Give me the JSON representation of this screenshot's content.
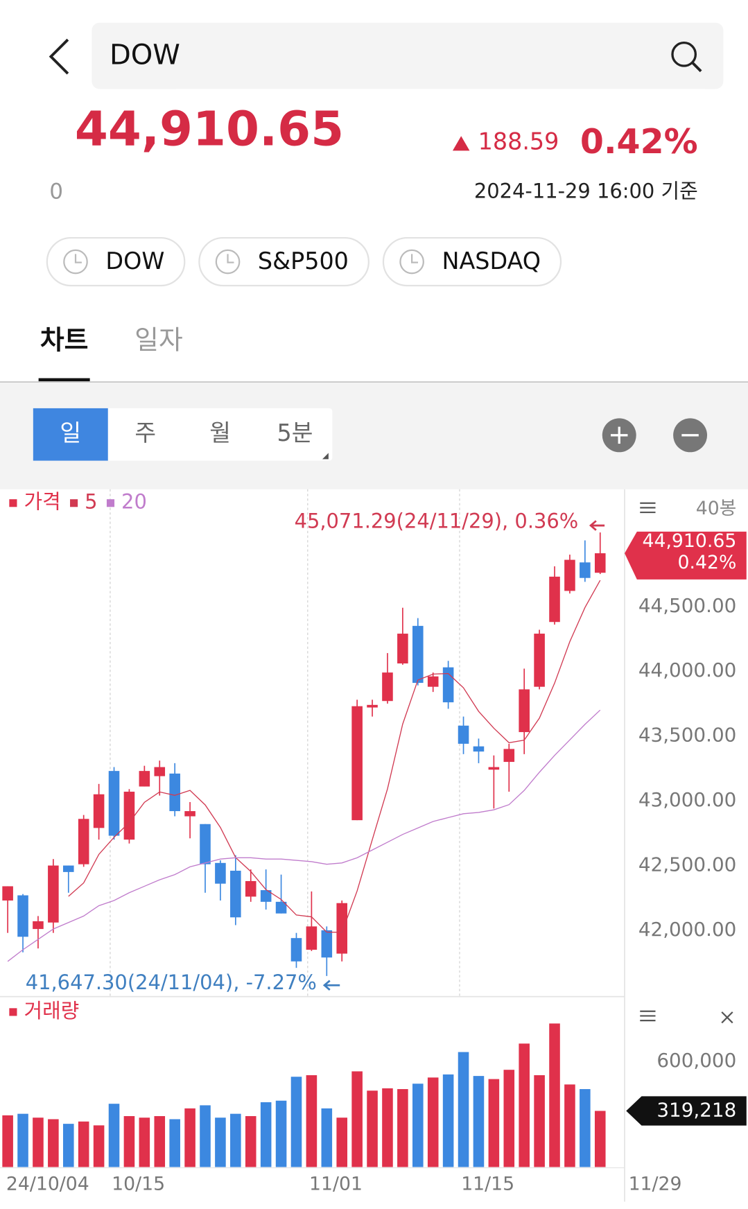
{
  "header": {
    "search": "DOW",
    "price": "44,910.65",
    "change": "188.59",
    "change_percent": "0.42%",
    "volume": "0",
    "timestamp": "2024-11-29 16:00 기준"
  },
  "index_chips": [
    "DOW",
    "S&P500",
    "NASDAQ"
  ],
  "tabs": [
    "차트",
    "일자"
  ],
  "active_tab": 0,
  "periods": [
    "일",
    "주",
    "월",
    "5분"
  ],
  "active_period": 0,
  "chart_data": [
    {
      "type": "candlestick",
      "up_color": "#e0314b",
      "down_color": "#3c88e0",
      "bar_count": "40봉",
      "ylim": [
        41494,
        45405
      ],
      "yticks": [
        {
          "value": 42000,
          "label": "42,000.00"
        },
        {
          "value": 42500,
          "label": "42,500.00"
        },
        {
          "value": 43000,
          "label": "43,000.00"
        },
        {
          "value": 43500,
          "label": "43,500.00"
        },
        {
          "value": 44000,
          "label": "44,000.00"
        },
        {
          "value": 44500,
          "label": "44,500.00"
        }
      ],
      "series": [
        {
          "name": "가격",
          "color": "#e0314b",
          "open": [
            42230,
            42270,
            42010,
            42060,
            42500,
            42510,
            42790,
            43230,
            42700,
            43110,
            43190,
            43210,
            42880,
            42820,
            42520,
            42460,
            42260,
            42310,
            42220,
            41940,
            41850,
            42000,
            41820,
            42850,
            43720,
            43770,
            44060,
            44350,
            43880,
            44030,
            43580,
            43420,
            43240,
            43300,
            43530,
            43880,
            44380,
            44620,
            44840,
            44760
          ],
          "high": [
            42340,
            42280,
            42110,
            42550,
            42500,
            42890,
            43130,
            43260,
            43090,
            43270,
            43310,
            43290,
            42990,
            42820,
            42540,
            42580,
            42470,
            42470,
            42430,
            41980,
            42300,
            42030,
            42230,
            43780,
            43780,
            44140,
            44490,
            44410,
            43990,
            44080,
            43650,
            43480,
            43350,
            43440,
            44020,
            44320,
            44810,
            44900,
            45010,
            45071.29
          ],
          "low": [
            41980,
            41830,
            41860,
            41980,
            42290,
            42490,
            42700,
            42700,
            42670,
            43110,
            43040,
            42880,
            42710,
            42290,
            42230,
            42040,
            42220,
            42160,
            42130,
            41710,
            41840,
            41647.3,
            41760,
            42850,
            43650,
            43750,
            44050,
            43890,
            43840,
            43710,
            43360,
            43290,
            42940,
            43070,
            43360,
            43860,
            44360,
            44600,
            44690,
            44750
          ],
          "close": [
            42340,
            41950,
            42070,
            42500,
            42450,
            42860,
            43050,
            42730,
            43070,
            43230,
            43260,
            42920,
            42920,
            42510,
            42360,
            42100,
            42380,
            42220,
            42130,
            41760,
            42030,
            41790,
            42210,
            43730,
            43740,
            43990,
            44290,
            43910,
            43960,
            43760,
            43440,
            43380,
            43260,
            43400,
            43860,
            44290,
            44730,
            44860,
            44720,
            44910.65
          ]
        },
        {
          "name": "5",
          "color": "#d13a52",
          "values": [
            null,
            null,
            null,
            null,
            42262,
            42366,
            42586,
            42718,
            42832,
            42988,
            43068,
            43042,
            43080,
            42968,
            42794,
            42562,
            42454,
            42314,
            42238,
            42118,
            42104,
            41986,
            41984,
            42304,
            42700,
            43092,
            43592,
            43932,
            43978,
            43982,
            43872,
            43690,
            43560,
            43448,
            43468,
            43638,
            43908,
            44228,
            44492,
            44702
          ]
        },
        {
          "name": "20",
          "color": "#c07ccc",
          "values": [
            41760,
            41850,
            41930,
            42010,
            42060,
            42110,
            42190,
            42230,
            42290,
            42340,
            42390,
            42430,
            42490,
            42520,
            42550,
            42560,
            42560,
            42550,
            42550,
            42540,
            42530,
            42510,
            42520,
            42560,
            42620,
            42680,
            42740,
            42790,
            42840,
            42870,
            42900,
            42910,
            42930,
            42970,
            43080,
            43220,
            43350,
            43470,
            43590,
            43700
          ]
        }
      ],
      "high_label": {
        "value": 45071.29,
        "label": "45,071.29(24/11/29), 0.36%"
      },
      "low_label": {
        "value": 41647.3,
        "label": "41,647.30(24/11/04), -7.27%"
      },
      "last_label": {
        "value": 44910.65,
        "label": "44,910.65",
        "change": "0.42%"
      }
    },
    {
      "type": "bar",
      "categories": [
        "24/10/04",
        null,
        null,
        null,
        null,
        null,
        null,
        "10/15",
        null,
        null,
        null,
        null,
        null,
        null,
        null,
        null,
        null,
        null,
        null,
        null,
        "11/01",
        null,
        null,
        null,
        null,
        null,
        null,
        null,
        null,
        null,
        "11/15",
        null,
        null,
        null,
        null,
        null,
        null,
        null,
        null,
        "11/29"
      ],
      "ylim": [
        0,
        960000
      ],
      "yticks": [
        {
          "value": 600000,
          "label": "600,000"
        }
      ],
      "series": [
        {
          "name": "거래량",
          "color": "#e0314b",
          "values": [
            293900,
            302700,
            280800,
            272000,
            245700,
            258800,
            236900,
            359700,
            289500,
            280800,
            289500,
            272000,
            333400,
            351000,
            280800,
            302700,
            289500,
            368500,
            377300,
            513300,
            522100,
            333400,
            280800,
            544000,
            434300,
            447500,
            443100,
            473800,
            508900,
            526400,
            653700,
            517700,
            500100,
            552800,
            701900,
            522100,
            816000,
            469400,
            443100,
            319218
          ]
        }
      ],
      "last_label": {
        "value": 319218,
        "label": "319,218"
      }
    }
  ]
}
